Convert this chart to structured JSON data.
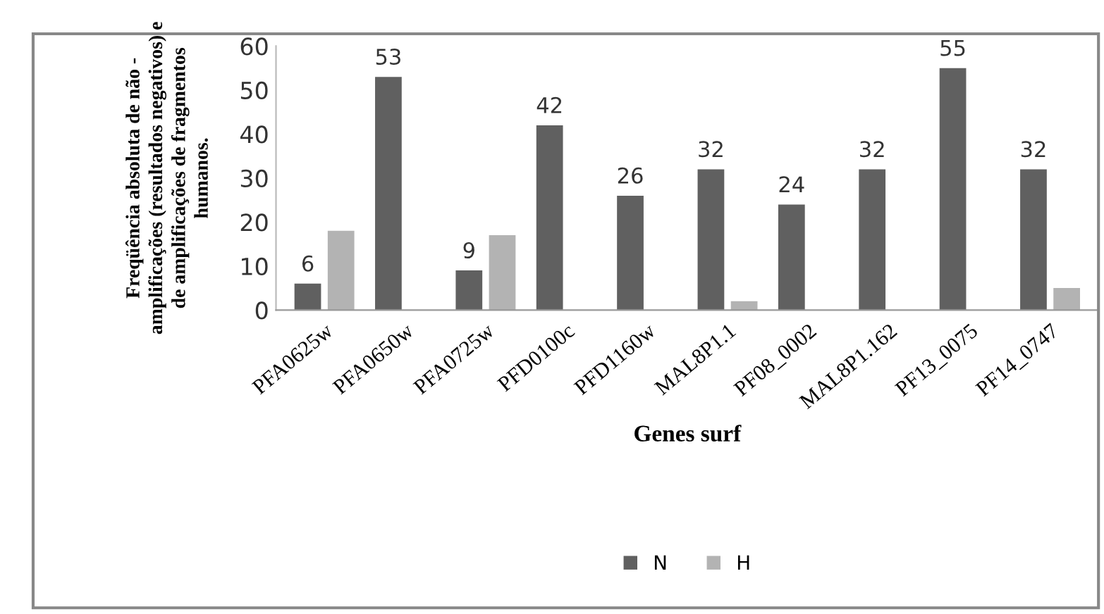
{
  "chart_data": {
    "type": "bar",
    "xlabel": "Genes surf",
    "ylabel": "Freqüência absoluta de não -\namplificações (resultados negativos) e\nde amplificações de fragmentos\nhumanos.",
    "categories": [
      "PFA0625w",
      "PFA0650w",
      "PFA0725w",
      "PFD0100c",
      "PFD1160w",
      "MAL8P1.1",
      "PF08_0002",
      "MAL8P1.162",
      "PF13_0075",
      "PF14_0747"
    ],
    "series": [
      {
        "name": "N",
        "color": "#606060",
        "values": [
          6,
          53,
          9,
          42,
          26,
          32,
          24,
          32,
          55,
          32
        ],
        "value_labels": [
          "6",
          "53",
          "9",
          "42",
          "26",
          "32",
          "24",
          "32",
          "55",
          "32"
        ]
      },
      {
        "name": "H",
        "color": "#b3b3b3",
        "values": [
          18,
          null,
          17,
          null,
          null,
          2,
          null,
          null,
          null,
          5
        ]
      }
    ],
    "ylim": [
      0,
      60
    ],
    "yticks": [
      0,
      10,
      20,
      30,
      40,
      50,
      60
    ],
    "grid": false,
    "legend": "bottom"
  }
}
